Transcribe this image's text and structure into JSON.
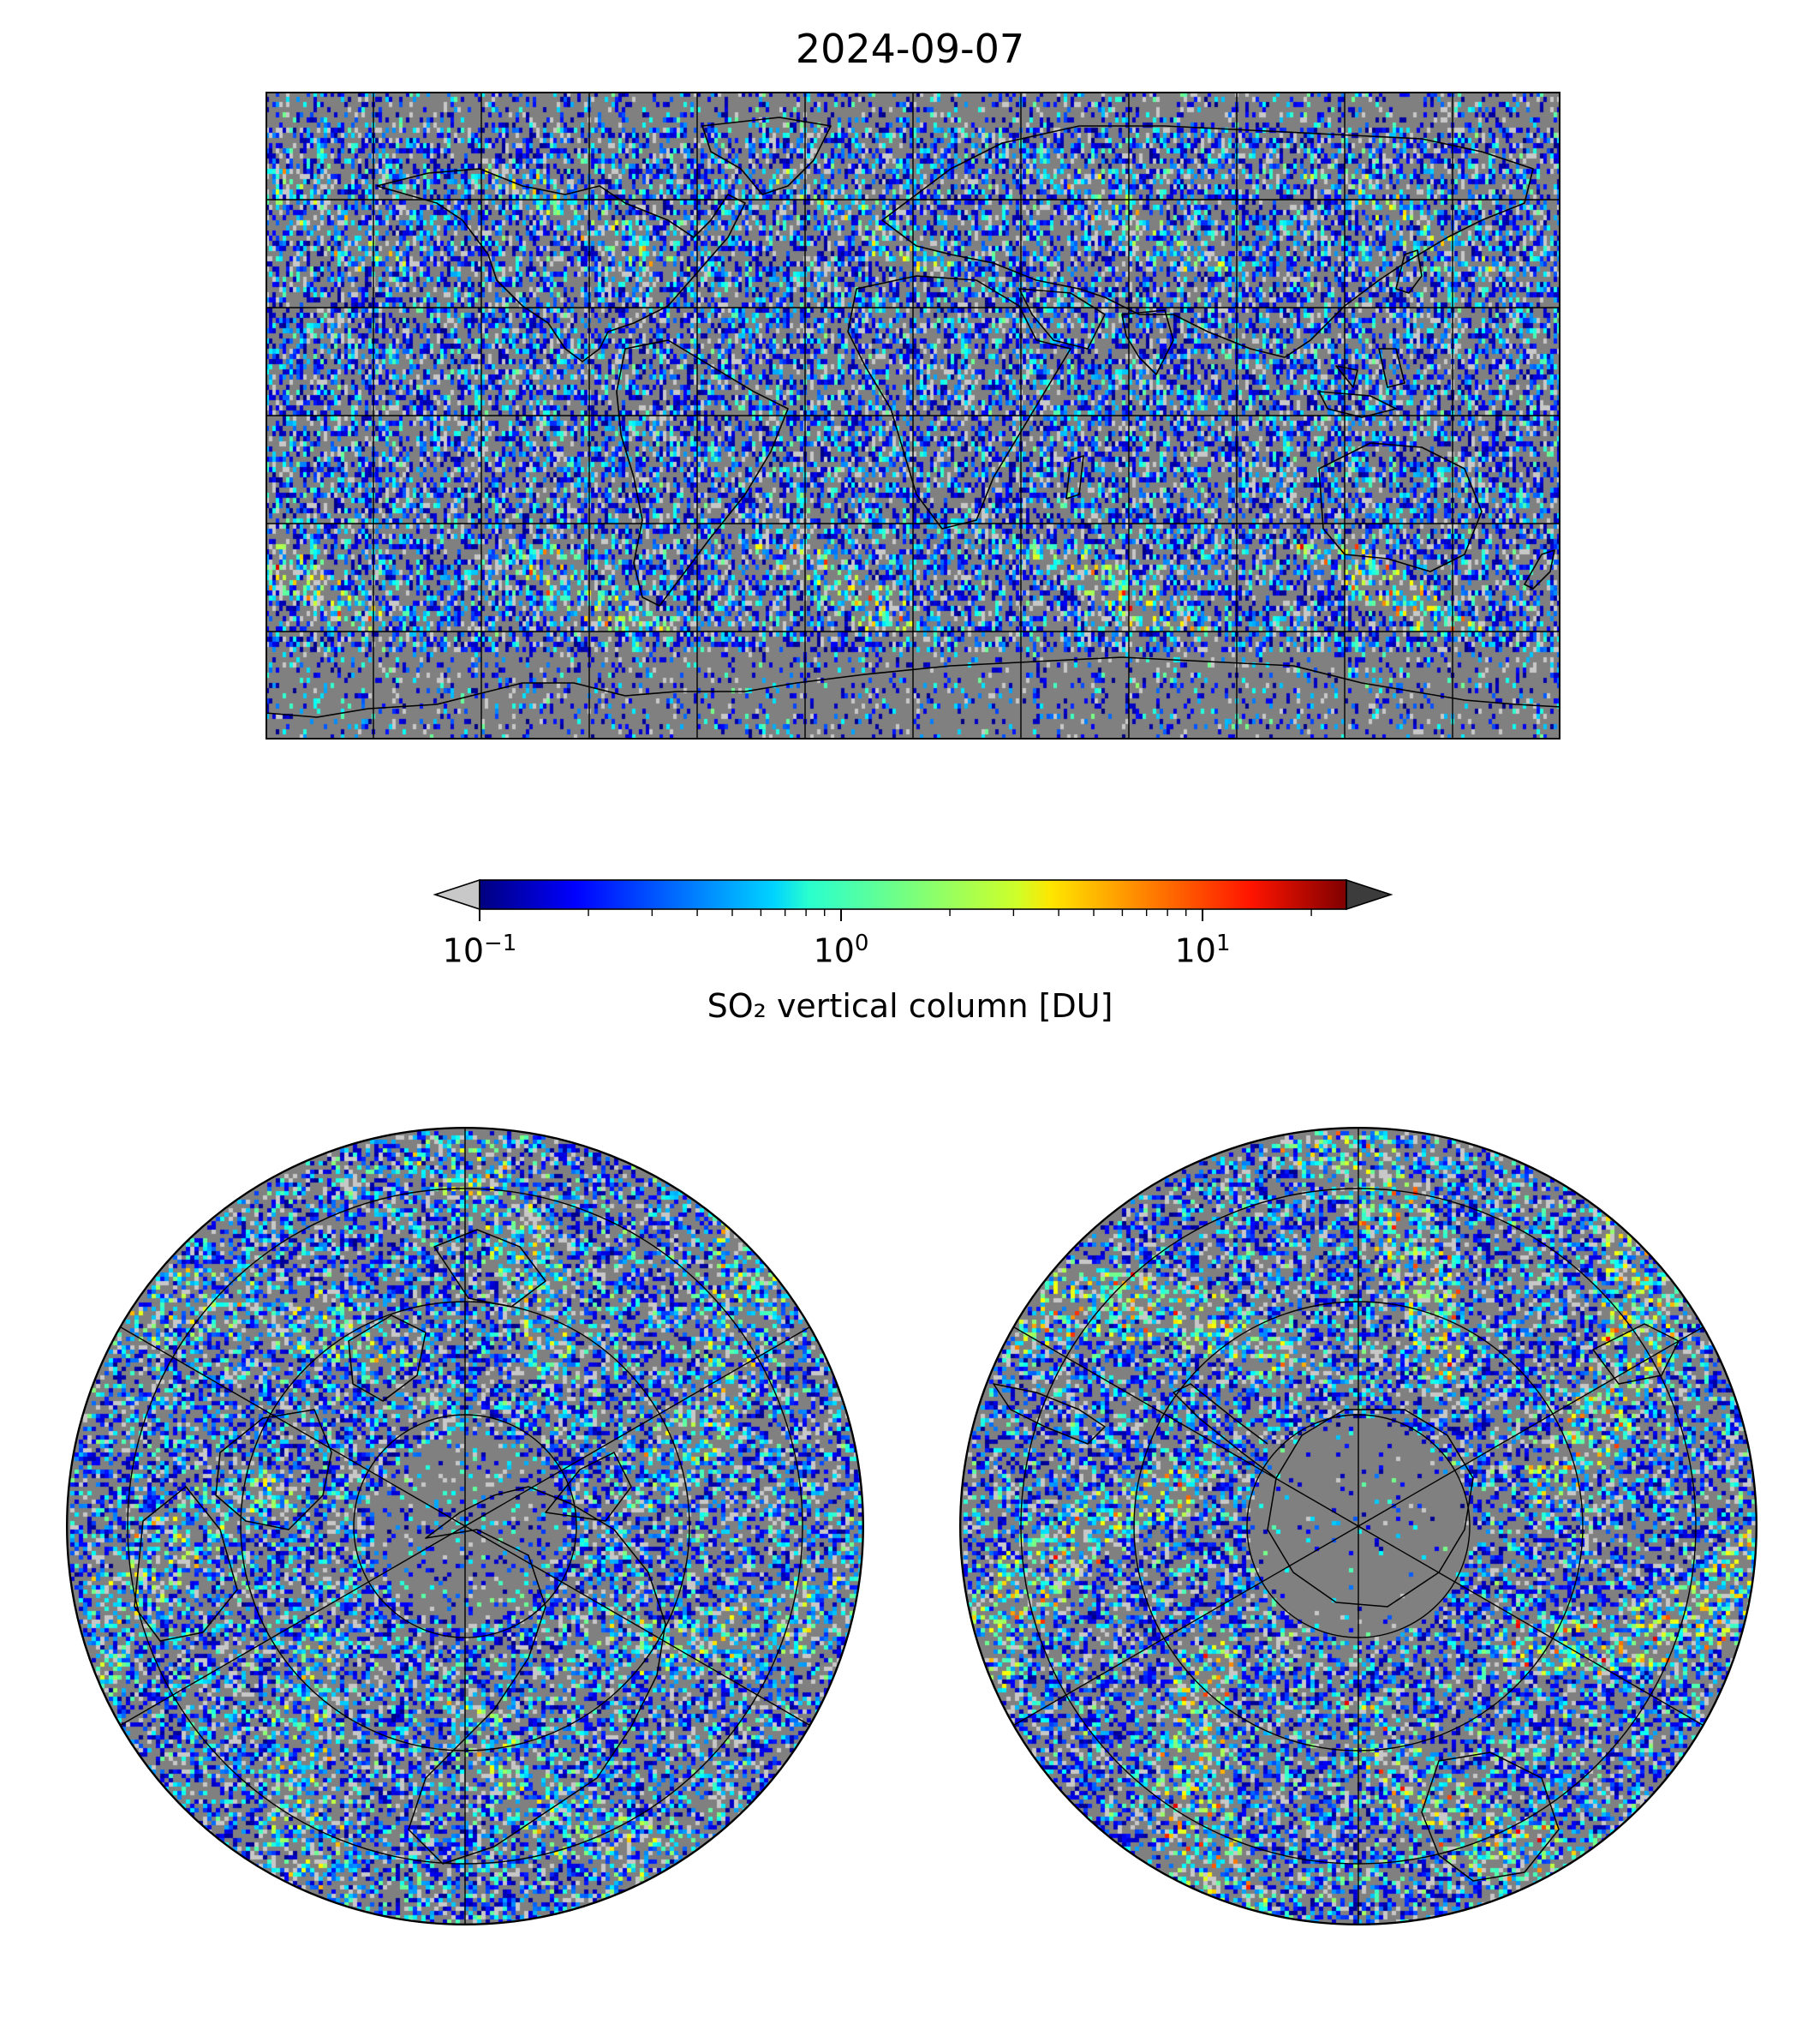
{
  "title": "2024-09-07",
  "colorbar": {
    "label": "SO₂ vertical column [DU]",
    "scale": "log",
    "range": [
      0.1,
      25
    ],
    "extend": "both",
    "under_color": "#c8c8c8",
    "over_color": "#3c3c3c",
    "colormap": "jet",
    "ticks": [
      {
        "base": "10",
        "exp": "−1",
        "value": 0.1
      },
      {
        "base": "10",
        "exp": "0",
        "value": 1
      },
      {
        "base": "10",
        "exp": "1",
        "value": 10
      }
    ]
  },
  "panels": {
    "world": {
      "projection": "plate-carree",
      "gridlines_deg": 30,
      "background": "#808080"
    },
    "north": {
      "projection": "north-polar-stereographic",
      "background": "#808080"
    },
    "south": {
      "projection": "south-polar-stereographic",
      "background": "#808080"
    }
  },
  "colors": {
    "no_data": "#808080",
    "coastline": "#000000"
  }
}
